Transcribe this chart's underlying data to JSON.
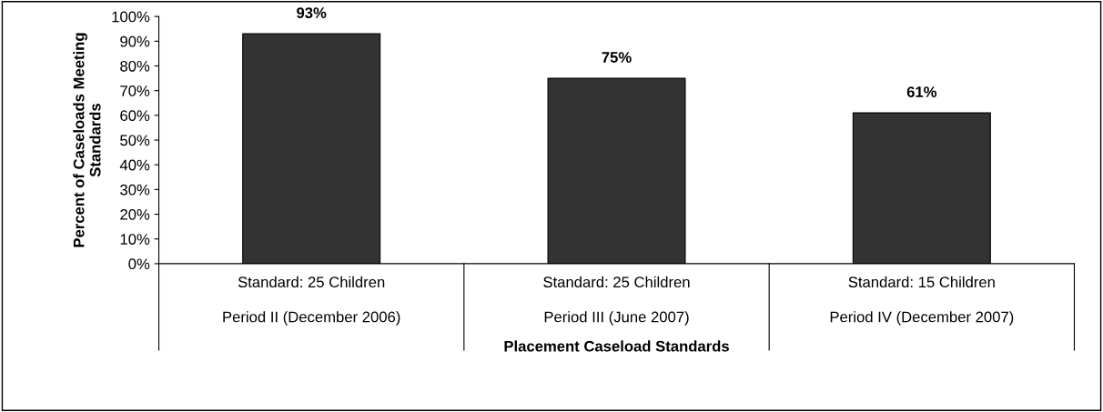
{
  "chart_data": {
    "type": "bar",
    "categories": [
      "Standard: 25 Children\n\nPeriod II (December 2006)",
      "Standard: 25 Children\n\nPeriod III (June 2007)",
      "Standard: 15 Children\n\nPeriod IV (December 2007)"
    ],
    "values": [
      93,
      75,
      61
    ],
    "value_labels": [
      "93%",
      "75%",
      "61%"
    ],
    "color": "#333333",
    "xlabel": "Placement Caseload Standards",
    "ylabel": "Percent of Caseloads Meeting\nStandards",
    "ylim": [
      0,
      100
    ],
    "yticks": [
      {
        "value": 0,
        "label": "0%"
      },
      {
        "value": 10,
        "label": "10%"
      },
      {
        "value": 20,
        "label": "20%"
      },
      {
        "value": 30,
        "label": "30%"
      },
      {
        "value": 40,
        "label": "40%"
      },
      {
        "value": 50,
        "label": "50%"
      },
      {
        "value": 60,
        "label": "60%"
      },
      {
        "value": 70,
        "label": "70%"
      },
      {
        "value": 80,
        "label": "80%"
      },
      {
        "value": 90,
        "label": "90%"
      },
      {
        "value": 100,
        "label": "100%"
      }
    ],
    "grid": false,
    "legend": false
  }
}
